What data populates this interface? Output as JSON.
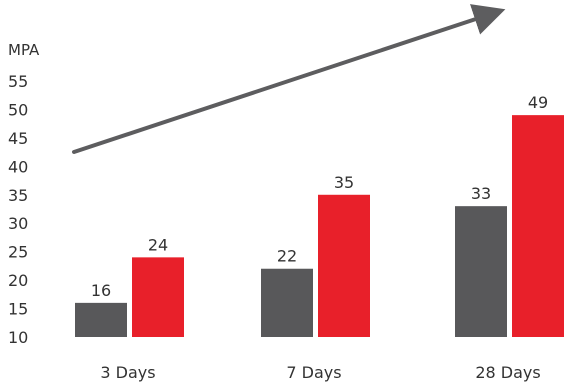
{
  "chart_data": {
    "type": "bar",
    "ylabel": "MPA",
    "ylim": [
      10,
      55
    ],
    "yticks": [
      10,
      15,
      20,
      25,
      30,
      35,
      40,
      45,
      50,
      55
    ],
    "categories": [
      "3 Days",
      "7 Days",
      "28 Days"
    ],
    "series": [
      {
        "values": [
          16,
          22,
          33
        ],
        "color": "#58585a"
      },
      {
        "values": [
          24,
          35,
          49
        ],
        "color": "#e8202a"
      }
    ],
    "grid": false,
    "legend": "none",
    "annotation": "upward trend arrow",
    "arrow_color": "#5d5d5f"
  }
}
